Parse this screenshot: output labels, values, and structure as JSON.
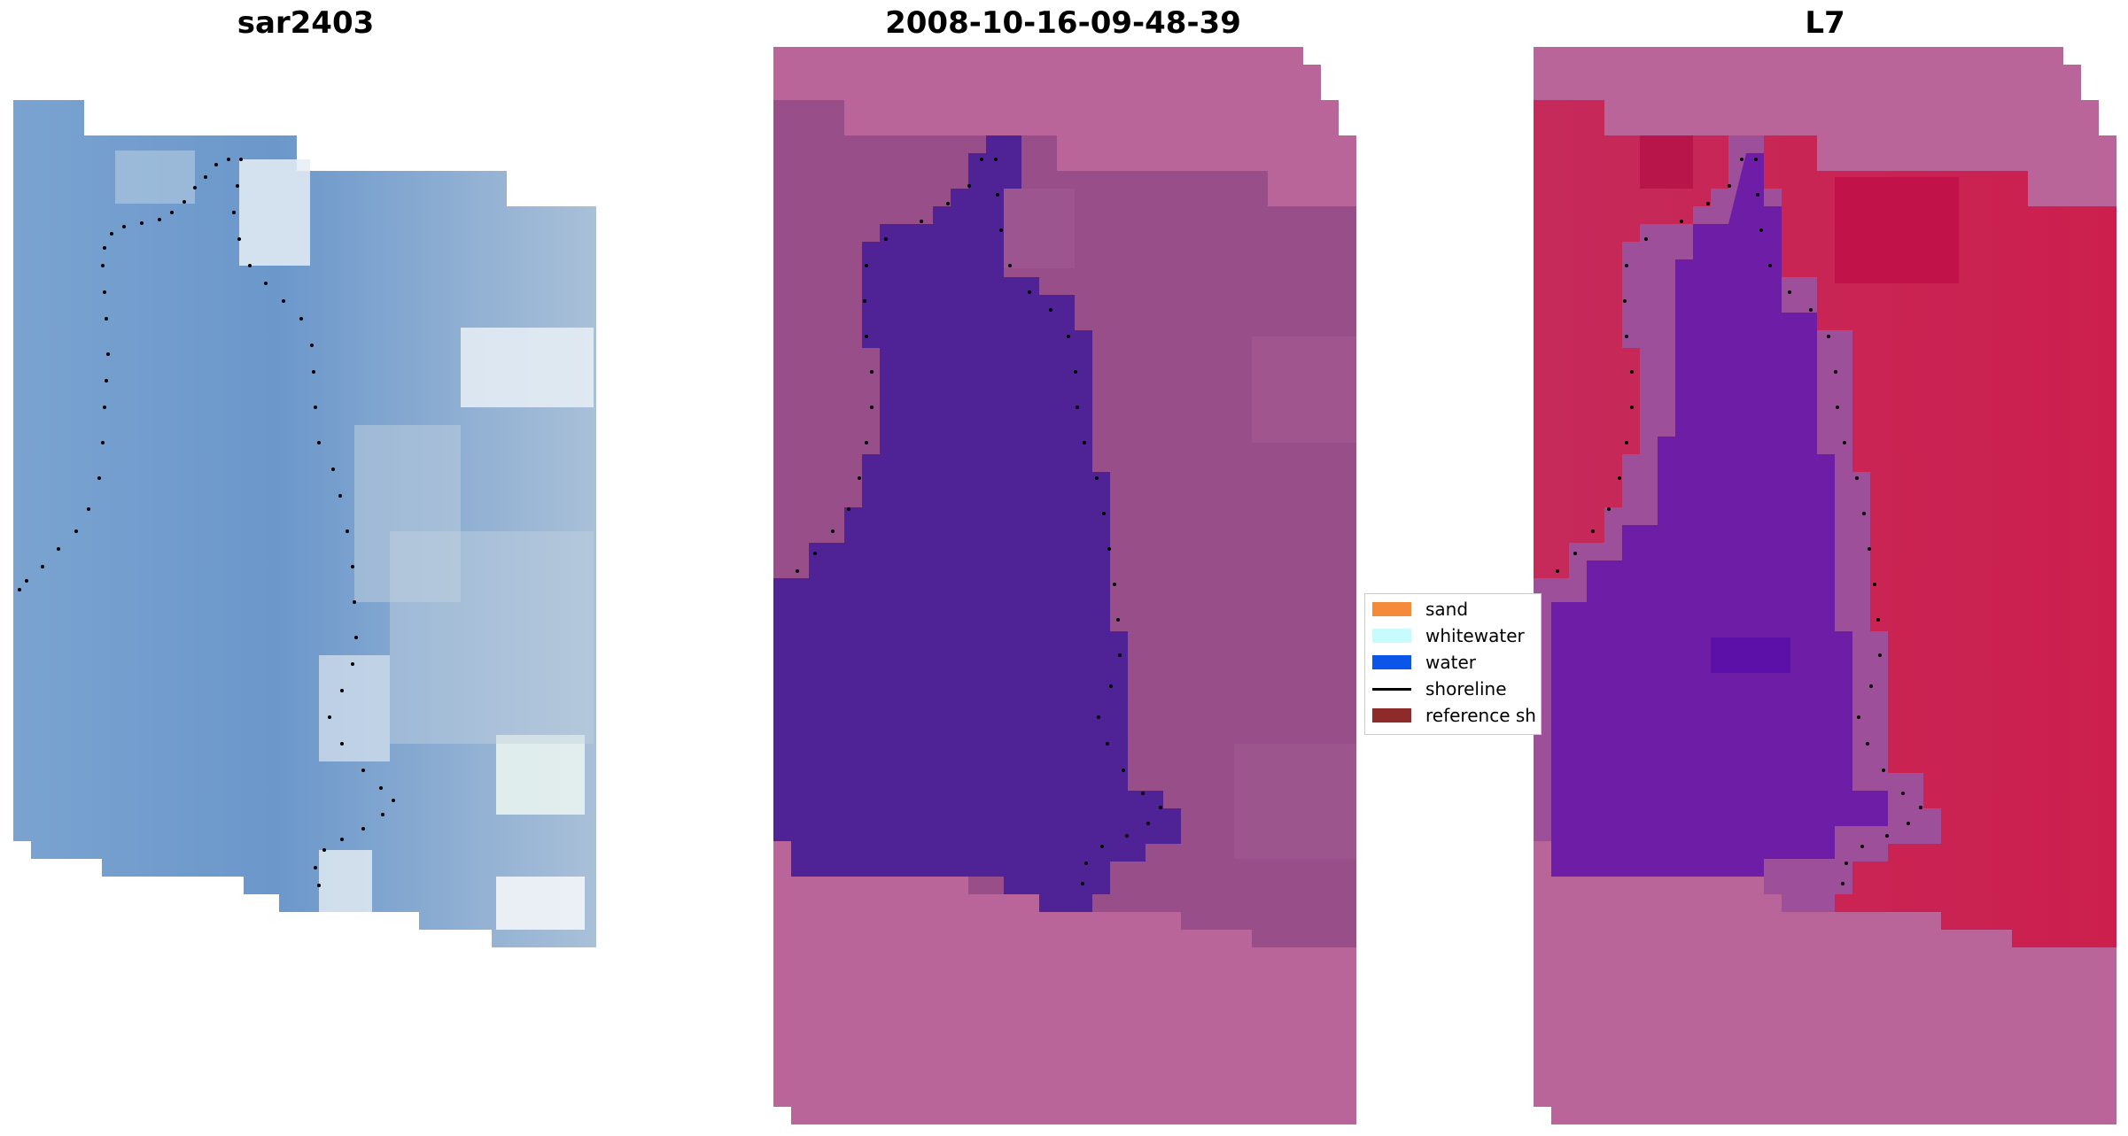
{
  "panels": {
    "left_title": "sar2403",
    "middle_title": "2008-10-16-09-48-39",
    "right_title": "L7"
  },
  "legend": {
    "items": [
      {
        "label": "sand",
        "color": "#f48a3a",
        "kind": "patch"
      },
      {
        "label": "whitewater",
        "color": "#c8fbfb",
        "kind": "patch"
      },
      {
        "label": "water",
        "color": "#0b55e8",
        "kind": "patch"
      },
      {
        "label": "shoreline",
        "color": "#000000",
        "kind": "line"
      },
      {
        "label": "reference sh",
        "color": "#8f2a2a",
        "kind": "patch"
      }
    ]
  },
  "colors": {
    "rgb_water": "#6f99cc",
    "rgb_foam": "#dfe9f2",
    "class_background": "#b9659a",
    "class_land": "#9a4f8a",
    "class_water": "#4f2395",
    "ndwi_land": "#c42256",
    "ndwi_water": "#6b1aa4",
    "shoreline": "#000000"
  }
}
